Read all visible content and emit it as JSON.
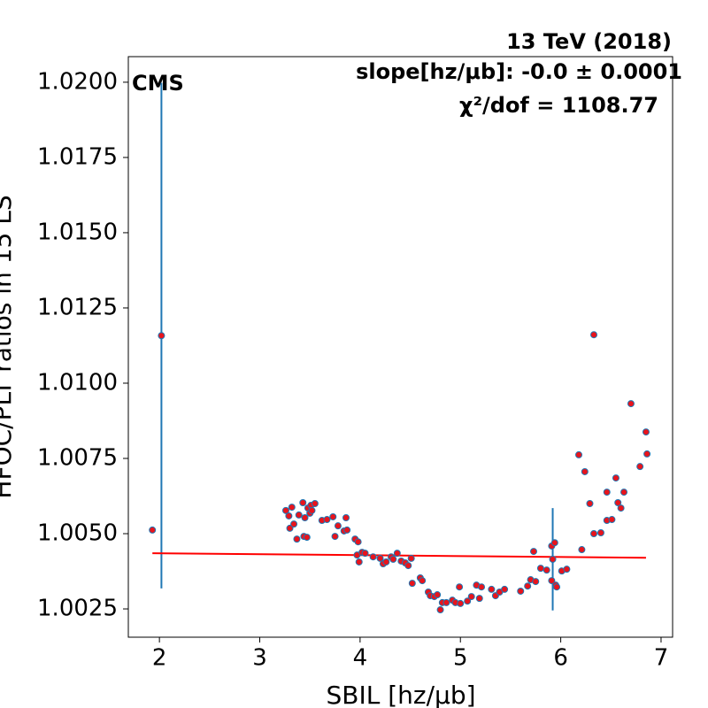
{
  "chart_data": {
    "type": "scatter",
    "title": "13 TeV (2018)",
    "annotations": [
      "slope[hz/μb]: -0.0 ± 0.0001",
      "χ²/dof = 1108.77",
      "CMS"
    ],
    "x_label": "SBIL [hz/μb]",
    "y_label": "HFOC/PLT ratios in 15 LS",
    "xlim": [
      1.69,
      7.115
    ],
    "ylim": [
      1.00156,
      1.02085
    ],
    "xticks": [
      2,
      3,
      4,
      5,
      6,
      7
    ],
    "yticks": [
      1.0025,
      {
        "value": 1.005,
        "label": "1.0050"
      },
      1.0075,
      {
        "value": 1.01,
        "label": "1.0100"
      },
      1.0125,
      {
        "value": 1.015,
        "label": "1.0150"
      },
      1.0175,
      {
        "value": 1.02,
        "label": "1.0200"
      }
    ],
    "marker_color": "#e8141c",
    "edge_color": "#1f77b4",
    "points": {
      "x": [
        1.93,
        2.02,
        3.26,
        3.29,
        3.3,
        3.32,
        3.34,
        3.37,
        3.39,
        3.43,
        3.44,
        3.45,
        3.47,
        3.48,
        3.5,
        3.51,
        3.52,
        3.55,
        3.62,
        3.67,
        3.73,
        3.75,
        3.78,
        3.84,
        3.86,
        3.87,
        3.95,
        3.98,
        3.97,
        3.99,
        4.02,
        4.05,
        4.13,
        4.2,
        4.23,
        4.26,
        4.31,
        4.33,
        4.37,
        4.41,
        4.45,
        4.48,
        4.51,
        4.52,
        4.6,
        4.62,
        4.68,
        4.7,
        4.74,
        4.77,
        4.8,
        4.82,
        4.86,
        4.92,
        4.95,
        4.99,
        5.0,
        5.07,
        5.11,
        5.16,
        5.19,
        5.21,
        5.31,
        5.35,
        5.39,
        5.44,
        5.6,
        5.67,
        5.7,
        5.73,
        5.75,
        5.8,
        5.86,
        5.91,
        5.91,
        5.92,
        5.94,
        5.95,
        5.96,
        6.01,
        6.06,
        6.18,
        6.21,
        6.24,
        6.29,
        6.33,
        6.33,
        6.4,
        6.46,
        6.46,
        6.51,
        6.55,
        6.57,
        6.6,
        6.63,
        6.7,
        6.79,
        6.85,
        6.86
      ],
      "y": [
        1.00512,
        1.01158,
        1.00577,
        1.00559,
        1.00518,
        1.00588,
        1.00532,
        1.00482,
        1.00562,
        1.00603,
        1.00491,
        1.00553,
        1.00488,
        1.00585,
        1.00568,
        1.00594,
        1.00577,
        1.006,
        1.00544,
        1.00547,
        1.00556,
        1.00491,
        1.00526,
        1.00509,
        1.00553,
        1.00512,
        1.00482,
        1.00473,
        1.00429,
        1.00406,
        1.00438,
        1.00435,
        1.00423,
        1.00418,
        1.004,
        1.00406,
        1.00423,
        1.00415,
        1.00435,
        1.00409,
        1.00403,
        1.00394,
        1.00418,
        1.00335,
        1.00353,
        1.00344,
        1.00306,
        1.00294,
        1.00291,
        1.00297,
        1.00247,
        1.00271,
        1.00271,
        1.00279,
        1.00271,
        1.00323,
        1.00268,
        1.00276,
        1.00291,
        1.00329,
        1.00285,
        1.00323,
        1.00315,
        1.00294,
        1.00306,
        1.00315,
        1.00309,
        1.00326,
        1.00347,
        1.00441,
        1.00341,
        1.00385,
        1.00379,
        1.00459,
        1.00344,
        1.00415,
        1.0047,
        1.00329,
        1.00323,
        1.00376,
        1.00382,
        1.00762,
        1.00447,
        1.00706,
        1.006,
        1.005,
        1.01161,
        1.00503,
        1.00638,
        1.00544,
        1.00547,
        1.00685,
        1.00603,
        1.00585,
        1.00638,
        1.00932,
        1.00723,
        1.00838,
        1.00765
      ],
      "yerr": [
        3e-05,
        0.0084,
        3e-05,
        3e-05,
        3e-05,
        3e-05,
        3e-05,
        3e-05,
        3e-05,
        7e-05,
        3e-05,
        3e-05,
        3e-05,
        3e-05,
        3e-05,
        3e-05,
        3e-05,
        3e-05,
        3e-05,
        3e-05,
        3e-05,
        3e-05,
        3e-05,
        3e-05,
        7e-05,
        3e-05,
        3e-05,
        3e-05,
        3e-05,
        3e-05,
        3e-05,
        3e-05,
        3e-05,
        3e-05,
        3e-05,
        3e-05,
        3e-05,
        3e-05,
        3e-05,
        3e-05,
        3e-05,
        3e-05,
        3e-05,
        3e-05,
        3e-05,
        3e-05,
        7e-05,
        3e-05,
        3e-05,
        3e-05,
        3e-05,
        3e-05,
        3e-05,
        3e-05,
        3e-05,
        3e-05,
        3e-05,
        3e-05,
        3e-05,
        3e-05,
        3e-05,
        3e-05,
        3e-05,
        3e-05,
        3e-05,
        3e-05,
        3e-05,
        3e-05,
        3e-05,
        7e-05,
        3e-05,
        3e-05,
        3e-05,
        3e-05,
        3e-05,
        0.0017,
        3e-05,
        3e-05,
        3e-05,
        3e-05,
        3e-05,
        3e-05,
        3e-05,
        3e-05,
        9e-05,
        3e-05,
        5e-05,
        3e-05,
        3e-05,
        3e-05,
        3e-05,
        3e-05,
        3e-05,
        3e-05,
        3e-05,
        3e-05,
        3e-05,
        3e-05,
        3e-05
      ]
    },
    "fit": {
      "x": [
        1.93,
        6.85
      ],
      "y": [
        1.00435,
        1.0042
      ],
      "color": "#ff0000"
    }
  }
}
